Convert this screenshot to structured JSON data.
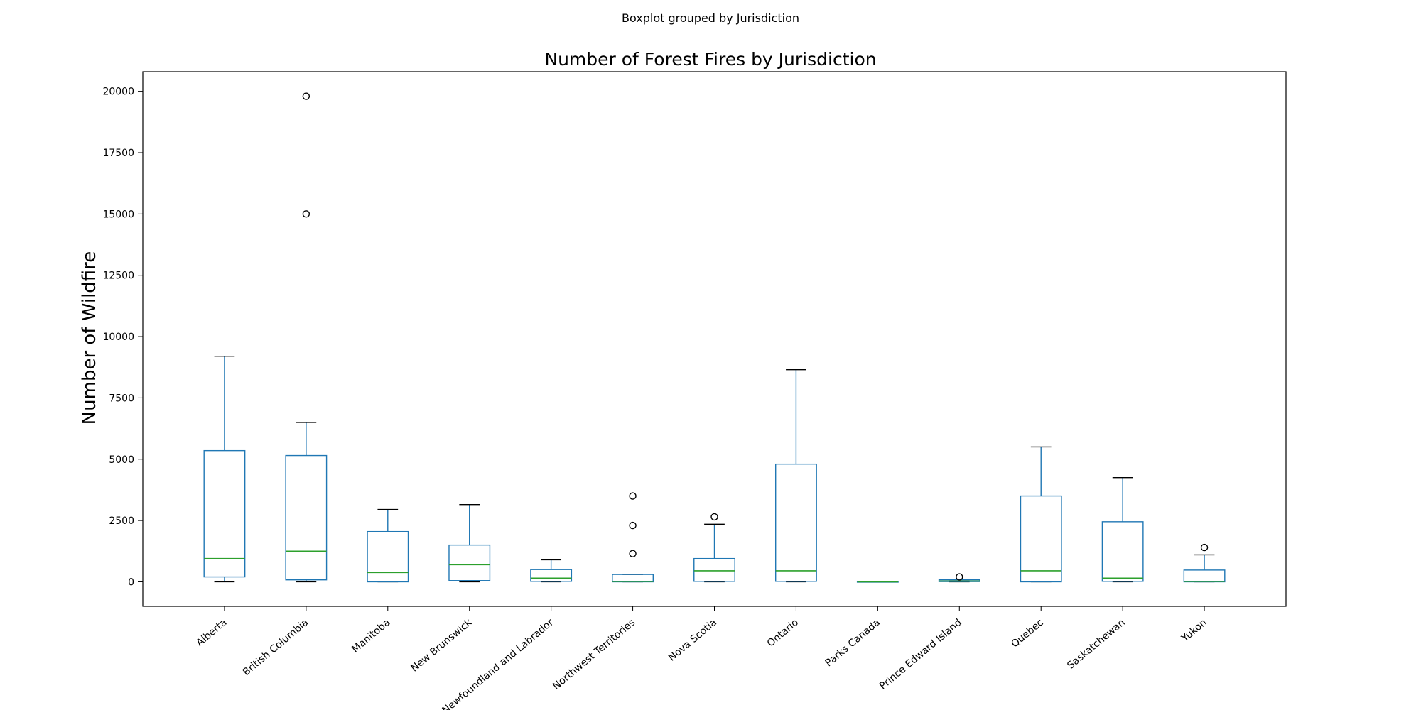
{
  "chart_data": {
    "type": "boxplot",
    "suptitle": "Boxplot grouped by Jurisdiction",
    "title": "Number of Forest Fires by Jurisdiction",
    "xlabel": "",
    "ylabel": "Number of Wildfire",
    "ylim": [
      -1000,
      20800
    ],
    "yticks": [
      0,
      2500,
      5000,
      7500,
      10000,
      12500,
      15000,
      17500,
      20000
    ],
    "grid": false,
    "colors": {
      "box": "#1f77b4",
      "median": "#2ca02c",
      "cap": "#000000",
      "flier": "#000000"
    },
    "categories": [
      {
        "name": "Alberta",
        "whislo": 0,
        "q1": 200,
        "median": 950,
        "q3": 5350,
        "whishi": 9200,
        "fliers": []
      },
      {
        "name": "British Columbia",
        "whislo": 0,
        "q1": 80,
        "median": 1250,
        "q3": 5150,
        "whishi": 6500,
        "fliers": [
          15000,
          19800
        ]
      },
      {
        "name": "Manitoba",
        "whislo": 0,
        "q1": 0,
        "median": 380,
        "q3": 2050,
        "whishi": 2950,
        "fliers": []
      },
      {
        "name": "New Brunswick",
        "whislo": 0,
        "q1": 50,
        "median": 700,
        "q3": 1500,
        "whishi": 3150,
        "fliers": []
      },
      {
        "name": "Newfoundland and Labrador",
        "whislo": 0,
        "q1": 20,
        "median": 150,
        "q3": 500,
        "whishi": 900,
        "fliers": []
      },
      {
        "name": "Northwest Territories",
        "whislo": 0,
        "q1": 0,
        "median": 20,
        "q3": 300,
        "whishi": 300,
        "fliers": [
          1150,
          2300,
          3500
        ]
      },
      {
        "name": "Nova Scotia",
        "whislo": 0,
        "q1": 20,
        "median": 450,
        "q3": 950,
        "whishi": 2350,
        "fliers": [
          2650
        ]
      },
      {
        "name": "Ontario",
        "whislo": 0,
        "q1": 20,
        "median": 450,
        "q3": 4800,
        "whishi": 8650,
        "fliers": []
      },
      {
        "name": "Parks Canada",
        "whislo": 0,
        "q1": 0,
        "median": 0,
        "q3": 0,
        "whishi": 0,
        "fliers": []
      },
      {
        "name": "Prince Edward Island",
        "whislo": 0,
        "q1": 10,
        "median": 30,
        "q3": 80,
        "whishi": 80,
        "fliers": [
          200
        ]
      },
      {
        "name": "Quebec",
        "whislo": 0,
        "q1": 0,
        "median": 450,
        "q3": 3500,
        "whishi": 5500,
        "fliers": []
      },
      {
        "name": "Saskatchewan",
        "whislo": 0,
        "q1": 20,
        "median": 150,
        "q3": 2450,
        "whishi": 4250,
        "fliers": []
      },
      {
        "name": "Yukon",
        "whislo": 0,
        "q1": 0,
        "median": 20,
        "q3": 480,
        "whishi": 1100,
        "fliers": [
          1400
        ]
      }
    ]
  }
}
